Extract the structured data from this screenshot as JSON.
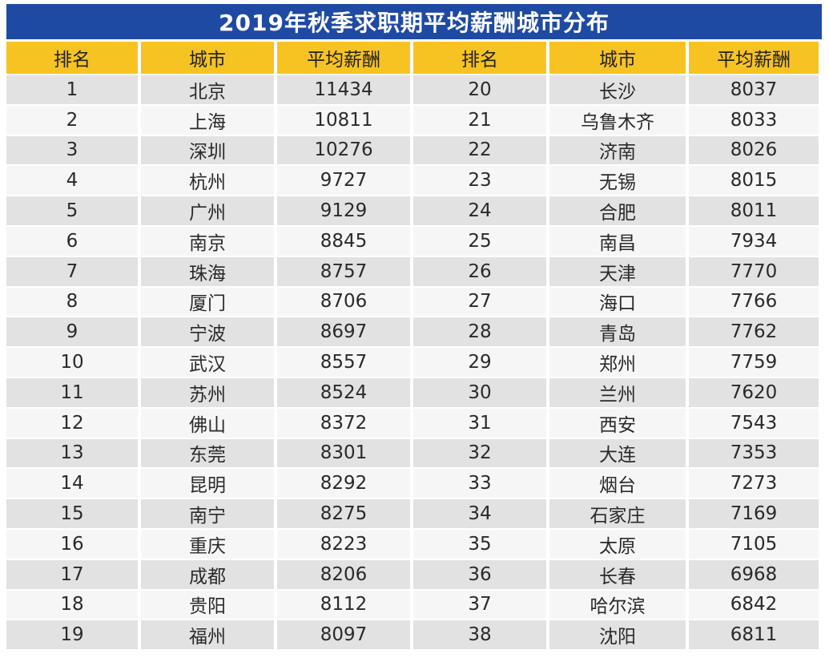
{
  "title": "2019年秋季求职期平均薪酬城市分布",
  "headers": [
    "排名",
    "城市",
    "平均薪酬",
    "排名",
    "城市",
    "平均薪酬"
  ],
  "rows": [
    {
      "rank_l": "1",
      "city_l": "北京",
      "salary_l": "11434",
      "rank_r": "20",
      "city_r": "长沙",
      "salary_r": "8037"
    },
    {
      "rank_l": "2",
      "city_l": "上海",
      "salary_l": "10811",
      "rank_r": "21",
      "city_r": "乌鲁木齐",
      "salary_r": "8033"
    },
    {
      "rank_l": "3",
      "city_l": "深圳",
      "salary_l": "10276",
      "rank_r": "22",
      "city_r": "济南",
      "salary_r": "8026"
    },
    {
      "rank_l": "4",
      "city_l": "杭州",
      "salary_l": "9727",
      "rank_r": "23",
      "city_r": "无锡",
      "salary_r": "8015"
    },
    {
      "rank_l": "5",
      "city_l": "广州",
      "salary_l": "9129",
      "rank_r": "24",
      "city_r": "合肥",
      "salary_r": "8011"
    },
    {
      "rank_l": "6",
      "city_l": "南京",
      "salary_l": "8845",
      "rank_r": "25",
      "city_r": "南昌",
      "salary_r": "7934"
    },
    {
      "rank_l": "7",
      "city_l": "珠海",
      "salary_l": "8757",
      "rank_r": "26",
      "city_r": "天津",
      "salary_r": "7770"
    },
    {
      "rank_l": "8",
      "city_l": "厦门",
      "salary_l": "8706",
      "rank_r": "27",
      "city_r": "海口",
      "salary_r": "7766"
    },
    {
      "rank_l": "9",
      "city_l": "宁波",
      "salary_l": "8697",
      "rank_r": "28",
      "city_r": "青岛",
      "salary_r": "7762"
    },
    {
      "rank_l": "10",
      "city_l": "武汉",
      "salary_l": "8557",
      "rank_r": "29",
      "city_r": "郑州",
      "salary_r": "7759"
    },
    {
      "rank_l": "11",
      "city_l": "苏州",
      "salary_l": "8524",
      "rank_r": "30",
      "city_r": "兰州",
      "salary_r": "7620"
    },
    {
      "rank_l": "12",
      "city_l": "佛山",
      "salary_l": "8372",
      "rank_r": "31",
      "city_r": "西安",
      "salary_r": "7543"
    },
    {
      "rank_l": "13",
      "city_l": "东莞",
      "salary_l": "8301",
      "rank_r": "32",
      "city_r": "大连",
      "salary_r": "7353"
    },
    {
      "rank_l": "14",
      "city_l": "昆明",
      "salary_l": "8292",
      "rank_r": "33",
      "city_r": "烟台",
      "salary_r": "7273"
    },
    {
      "rank_l": "15",
      "city_l": "南宁",
      "salary_l": "8275",
      "rank_r": "34",
      "city_r": "石家庄",
      "salary_r": "7169"
    },
    {
      "rank_l": "16",
      "city_l": "重庆",
      "salary_l": "8223",
      "rank_r": "35",
      "city_r": "太原",
      "salary_r": "7105"
    },
    {
      "rank_l": "17",
      "city_l": "成都",
      "salary_l": "8206",
      "rank_r": "36",
      "city_r": "长春",
      "salary_r": "6968"
    },
    {
      "rank_l": "18",
      "city_l": "贵阳",
      "salary_l": "8112",
      "rank_r": "37",
      "city_r": "哈尔滨",
      "salary_r": "6842"
    },
    {
      "rank_l": "19",
      "city_l": "福州",
      "salary_l": "8097",
      "rank_r": "38",
      "city_r": "沈阳",
      "salary_r": "6811"
    }
  ]
}
